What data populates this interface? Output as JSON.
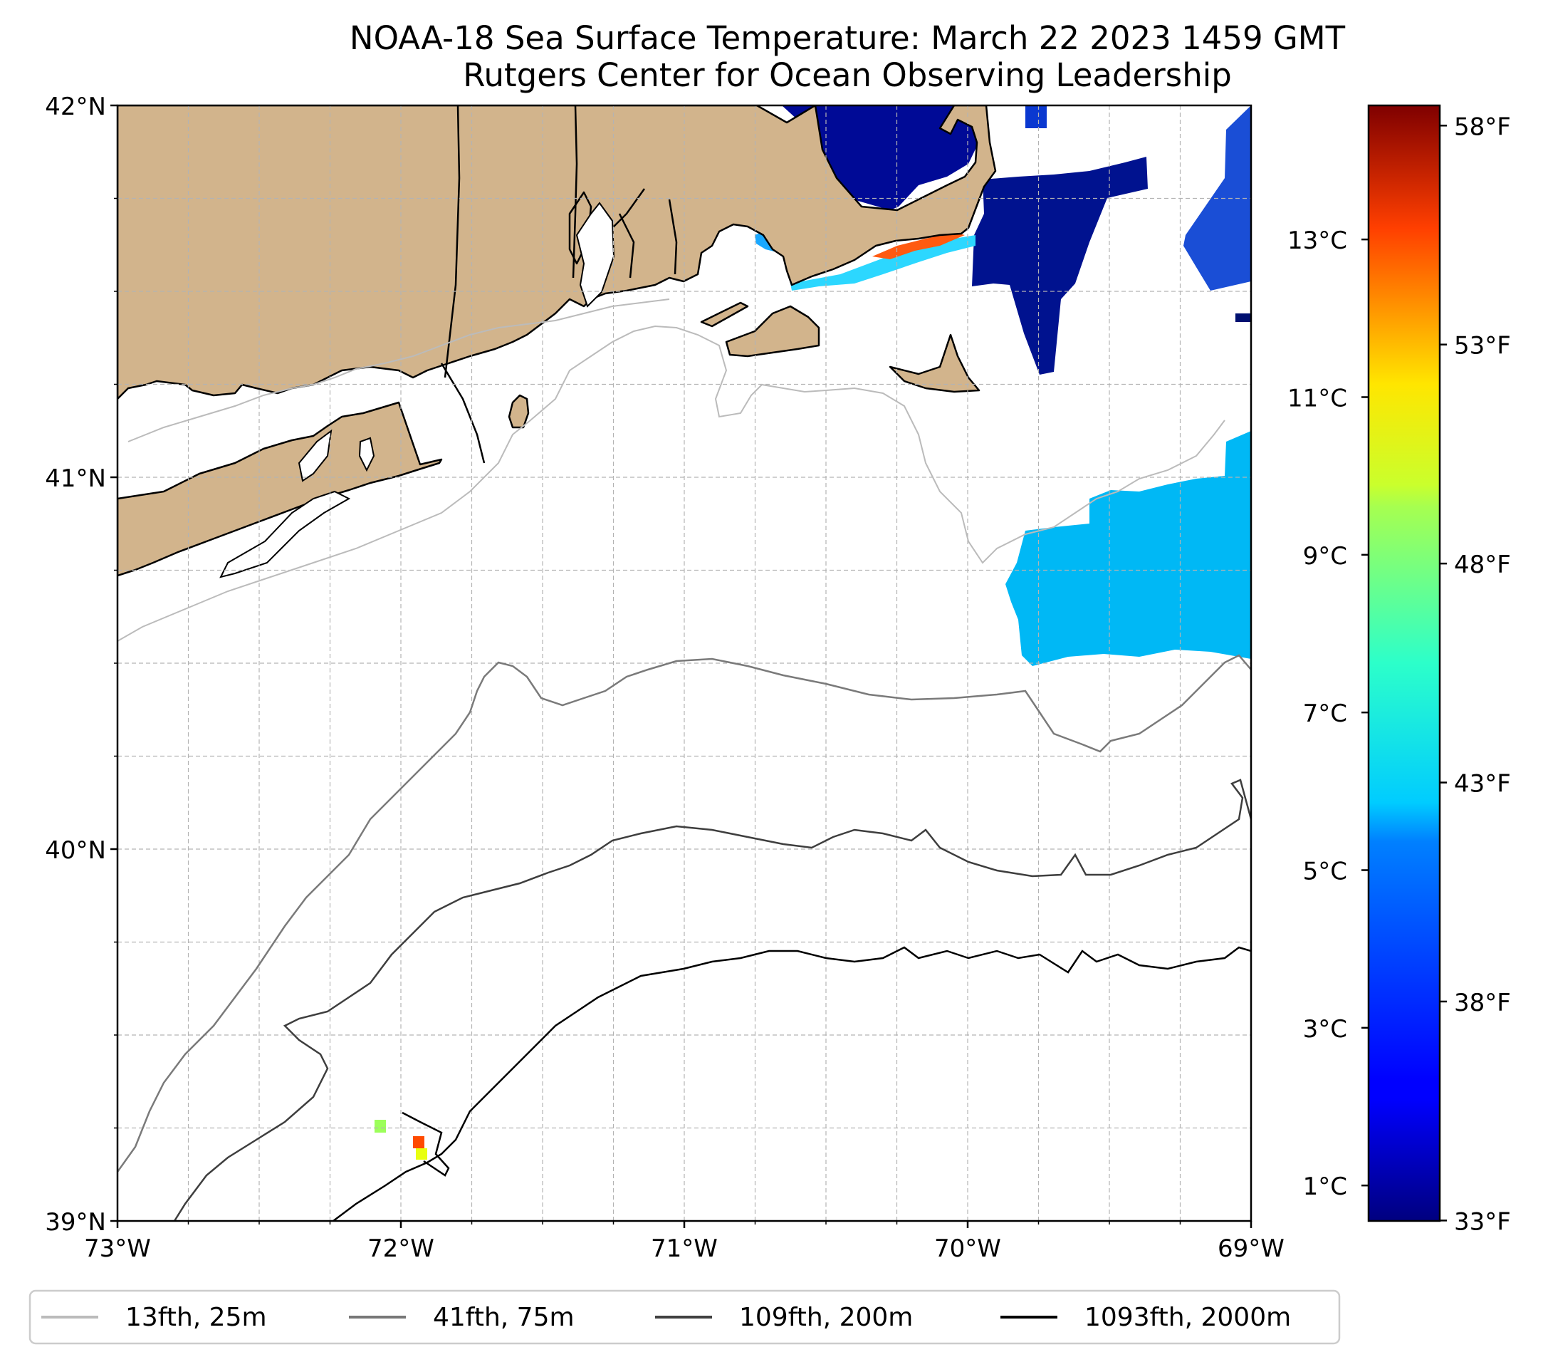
{
  "title": "NOAA-18 Sea Surface Temperature: March 22 2023 1459 GMT",
  "subtitle": "Rutgers Center for Ocean Observing Leadership",
  "map": {
    "lon_range": [
      -73,
      -69
    ],
    "lat_range": [
      39,
      42
    ],
    "lat_ticks": [
      {
        "value": 39,
        "label": "39°N"
      },
      {
        "value": 40,
        "label": "40°N"
      },
      {
        "value": 41,
        "label": "41°N"
      },
      {
        "value": 42,
        "label": "42°N"
      }
    ],
    "lon_ticks": [
      {
        "value": -73,
        "label": "73°W"
      },
      {
        "value": -72,
        "label": "72°W"
      },
      {
        "value": -71,
        "label": "71°W"
      },
      {
        "value": -70,
        "label": "70°W"
      },
      {
        "value": -69,
        "label": "69°W"
      }
    ],
    "gridlines": true,
    "grid_minor_step_deg": 0.25,
    "land_color": "#d2b48c",
    "coastline_color": "#000000"
  },
  "colorbar": {
    "colormap": "jet",
    "range_c": [
      0.55,
      14.7
    ],
    "celsius_ticks": [
      {
        "value": 1,
        "label": "1°C"
      },
      {
        "value": 3,
        "label": "3°C"
      },
      {
        "value": 5,
        "label": "5°C"
      },
      {
        "value": 7,
        "label": "7°C"
      },
      {
        "value": 9,
        "label": "9°C"
      },
      {
        "value": 11,
        "label": "11°C"
      },
      {
        "value": 13,
        "label": "13°C"
      }
    ],
    "fahrenheit_ticks": [
      {
        "value": 33,
        "label": "33°F"
      },
      {
        "value": 38,
        "label": "38°F"
      },
      {
        "value": 43,
        "label": "43°F"
      },
      {
        "value": 48,
        "label": "48°F"
      },
      {
        "value": 53,
        "label": "53°F"
      },
      {
        "value": 58,
        "label": "58°F"
      }
    ]
  },
  "legend": {
    "items": [
      {
        "label": "13fth, 25m",
        "color": "#bbbbbb"
      },
      {
        "label": "41fth, 75m",
        "color": "#777777"
      },
      {
        "label": "109fth, 200m",
        "color": "#404040"
      },
      {
        "label": "1093fth, 2000m",
        "color": "#000000"
      }
    ]
  }
}
